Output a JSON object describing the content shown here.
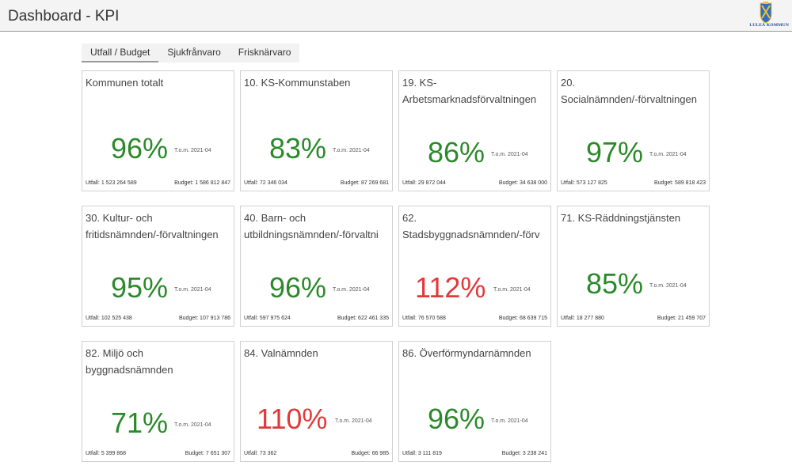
{
  "header": {
    "title": "Dashboard - KPI",
    "logo_text": "LULEÅ KOMMUN"
  },
  "tabs": [
    {
      "label": "Utfall / Budget"
    },
    {
      "label": "Sjukfrånvaro"
    },
    {
      "label": "Frisknärvaro"
    }
  ],
  "colors": {
    "ok": "#2a8a2a",
    "over": "#e2393a"
  },
  "cards": [
    {
      "title_lines": [
        "Kommunen totalt"
      ],
      "percent": "96%",
      "status": "ok",
      "date": "T.o.m. 2021-04",
      "utfall": "Utfall: 1 523 264 589",
      "budget": "Budget: 1 586 812 847"
    },
    {
      "title_lines": [
        "10. KS-Kommunstaben"
      ],
      "percent": "83%",
      "status": "ok",
      "date": "T.o.m. 2021-04",
      "utfall": "Utfall: 72 346 034",
      "budget": "Budget: 87 269 681"
    },
    {
      "title_lines": [
        "19. KS-",
        "Arbetsmarknadsförvaltningen"
      ],
      "percent": "86%",
      "status": "ok",
      "date": "T.o.m. 2021-04",
      "utfall": "Utfall: 29 872 044",
      "budget": "Budget: 34 638 000"
    },
    {
      "title_lines": [
        "20.",
        "Socialnämnden/-förvaltningen"
      ],
      "percent": "97%",
      "status": "ok",
      "date": "T.o.m. 2021-04",
      "utfall": "Utfall: 573 127 825",
      "budget": "Budget: 589 818 423"
    },
    {
      "title_lines": [
        "30. Kultur- och",
        "fritidsnämnden/-förvaltningen"
      ],
      "percent": "95%",
      "status": "ok",
      "date": "T.o.m. 2021-04",
      "utfall": "Utfall: 102 525 438",
      "budget": "Budget: 107 913 786"
    },
    {
      "title_lines": [
        "40. Barn- och",
        "utbildningsnämnden/-förvaltni"
      ],
      "percent": "96%",
      "status": "ok",
      "date": "T.o.m. 2021-04",
      "utfall": "Utfall: 597 975 624",
      "budget": "Budget: 622 461 335"
    },
    {
      "title_lines": [
        "62.",
        "Stadsbyggnadsnämnden/-förv"
      ],
      "percent": "112%",
      "status": "over",
      "date": "T.o.m. 2021-04",
      "utfall": "Utfall: 76 570 588",
      "budget": "Budget: 68 639 715"
    },
    {
      "title_lines": [
        "71. KS-Räddningstjänsten"
      ],
      "percent": "85%",
      "status": "ok",
      "date": "T.o.m. 2021-04",
      "utfall": "Utfall: 18 277 880",
      "budget": "Budget: 21 459 707"
    },
    {
      "title_lines": [
        "82. Miljö och",
        "byggnadsnämnden"
      ],
      "percent": "71%",
      "status": "ok",
      "date": "T.o.m. 2021-04",
      "utfall": "Utfall: 5 399 868",
      "budget": "Budget: 7 651 307"
    },
    {
      "title_lines": [
        "84. Valnämnden"
      ],
      "percent": "110%",
      "status": "over",
      "date": "T.o.m. 2021-04",
      "utfall": "Utfall: 73 362",
      "budget": "Budget: 66 985"
    },
    {
      "title_lines": [
        "86. Överförmyndarnämnden"
      ],
      "percent": "96%",
      "status": "ok",
      "date": "T.o.m. 2021-04",
      "utfall": "Utfall: 3 111 819",
      "budget": "Budget: 3 238 241"
    }
  ]
}
